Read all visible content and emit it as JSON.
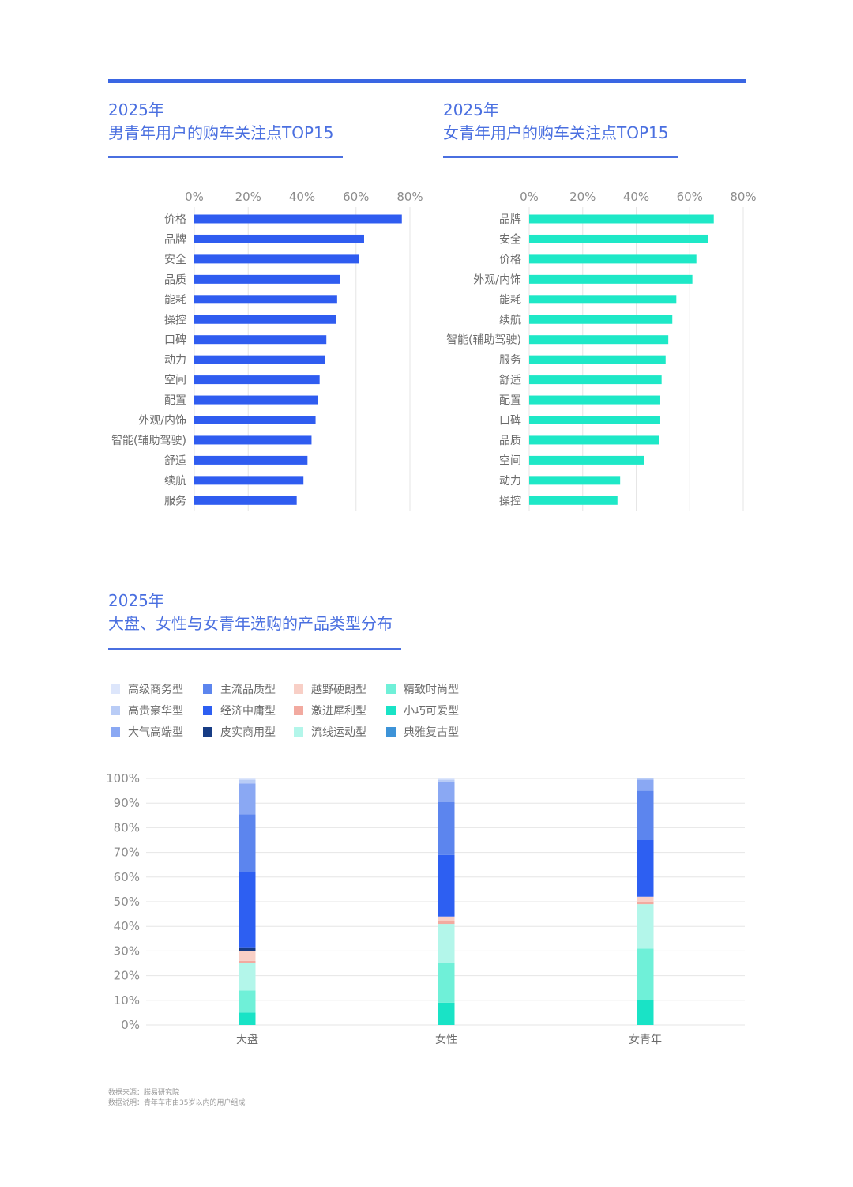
{
  "colors": {
    "accent": "#3a66e3",
    "male_bar": "#2f5cf0",
    "female_bar": "#1ee8c7",
    "grid": "#e6e6e6",
    "axis_text": "#8c8c8c",
    "label_text": "#6b6b6b"
  },
  "male_chart": {
    "title_year": "2025年",
    "title_text": "男青年用户的购车关注点TOP15"
  },
  "female_chart": {
    "title_year": "2025年",
    "title_text": "女青年用户的购车关注点TOP15"
  },
  "stack_chart": {
    "title_year": "2025年",
    "title_text": "大盘、女性与女青年选购的产品类型分布"
  },
  "footer": {
    "source": "数据来源：腾易研究院",
    "note": "数据说明：青年车市由35岁以内的用户组成"
  },
  "chart_data": [
    {
      "type": "bar",
      "orientation": "horizontal",
      "title": "男青年用户的购车关注点TOP15",
      "categories": [
        "价格",
        "品牌",
        "安全",
        "品质",
        "能耗",
        "操控",
        "口碑",
        "动力",
        "空间",
        "配置",
        "外观/内饰",
        "智能(辅助驾驶)",
        "舒适",
        "续航",
        "服务"
      ],
      "values": [
        77,
        63,
        61,
        54,
        53,
        52.5,
        49,
        48.5,
        46.5,
        46,
        45,
        43.5,
        42,
        40.5,
        38
      ],
      "xlim": [
        0,
        80
      ],
      "xticks": [
        "0%",
        "20%",
        "40%",
        "60%",
        "80%"
      ],
      "grid": true
    },
    {
      "type": "bar",
      "orientation": "horizontal",
      "title": "女青年用户的购车关注点TOP15",
      "categories": [
        "品牌",
        "安全",
        "价格",
        "外观/内饰",
        "能耗",
        "续航",
        "智能(辅助驾驶)",
        "服务",
        "舒适",
        "配置",
        "口碑",
        "品质",
        "空间",
        "动力",
        "操控"
      ],
      "values": [
        69,
        67,
        62.5,
        61,
        55,
        53.5,
        52,
        51,
        49.5,
        49,
        49,
        48.5,
        43,
        34,
        33
      ],
      "xlim": [
        0,
        80
      ],
      "xticks": [
        "0%",
        "20%",
        "40%",
        "60%",
        "80%"
      ],
      "grid": true
    },
    {
      "type": "bar",
      "stacked": true,
      "title": "大盘、女性与女青年选购的产品类型分布",
      "categories": [
        "大盘",
        "女性",
        "女青年"
      ],
      "ylim": [
        0,
        100
      ],
      "yticks": [
        "0%",
        "10%",
        "20%",
        "30%",
        "40%",
        "50%",
        "60%",
        "70%",
        "80%",
        "90%",
        "100%"
      ],
      "legend_position": "top-left",
      "series": [
        {
          "name": "小巧可爱型",
          "color": "#19e3c6",
          "values": [
            5,
            9,
            10
          ]
        },
        {
          "name": "精致时尚型",
          "color": "#6ff0d8",
          "values": [
            9,
            16,
            21
          ]
        },
        {
          "name": "流线运动型",
          "color": "#b3f6ea",
          "values": [
            11,
            16,
            18
          ]
        },
        {
          "name": "典雅复古型",
          "color": "#3d93d8",
          "values": [
            0,
            0,
            0
          ]
        },
        {
          "name": "激进犀利型",
          "color": "#f2aaa0",
          "values": [
            1,
            1,
            1
          ]
        },
        {
          "name": "越野硬朗型",
          "color": "#f8cfc6",
          "values": [
            4,
            2,
            2
          ]
        },
        {
          "name": "皮实商用型",
          "color": "#173c85",
          "values": [
            1.5,
            0,
            0
          ]
        },
        {
          "name": "经济中庸型",
          "color": "#2d5ff2",
          "values": [
            30.5,
            25,
            23
          ]
        },
        {
          "name": "主流品质型",
          "color": "#5c85ee",
          "values": [
            23.5,
            21.5,
            20
          ]
        },
        {
          "name": "大气高端型",
          "color": "#8aa8f3",
          "values": [
            12.5,
            8,
            4.5
          ]
        },
        {
          "name": "高贵豪华型",
          "color": "#b9ccf6",
          "values": [
            1.5,
            1,
            0.5
          ]
        },
        {
          "name": "高级商务型",
          "color": "#dde6fb",
          "values": [
            0.5,
            0.5,
            0
          ]
        }
      ],
      "legend_order": [
        "高级商务型",
        "主流品质型",
        "越野硬朗型",
        "精致时尚型",
        "高贵豪华型",
        "经济中庸型",
        "激进犀利型",
        "小巧可爱型",
        "大气高端型",
        "皮实商用型",
        "流线运动型",
        "典雅复古型"
      ]
    }
  ]
}
